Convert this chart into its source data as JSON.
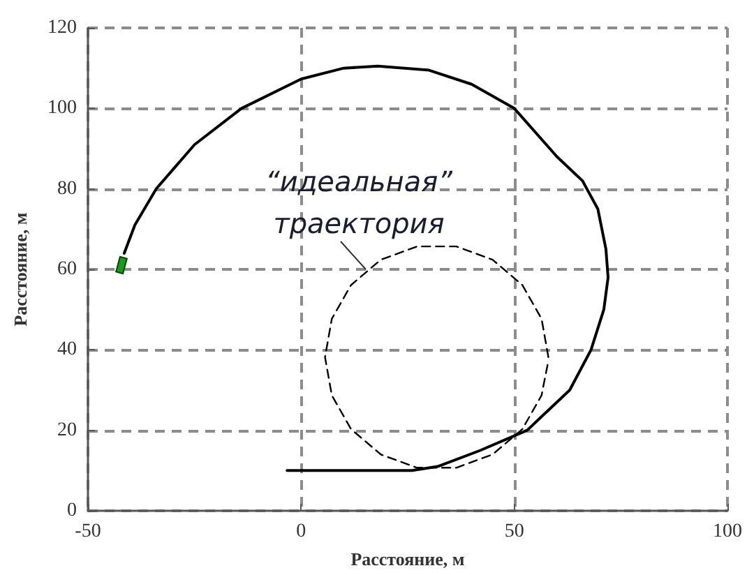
{
  "chart_data": {
    "type": "line",
    "xlabel": "Расстояние, м",
    "ylabel": "Расстояние, м",
    "xlim": [
      -50,
      100
    ],
    "xticks": [
      -50,
      0,
      50,
      100
    ],
    "ylim": [
      0,
      120
    ],
    "yticks": [
      0,
      20,
      40,
      60,
      80,
      100,
      120
    ],
    "grid": true,
    "marker": "none",
    "annotations": [
      "“идеальная”\nтраектория"
    ],
    "series": [
      {
        "color": "#000000",
        "line_style": "solid",
        "x": [
          -3.3,
          26,
          32,
          42,
          53,
          63,
          68,
          71,
          72,
          71.5,
          69.6,
          66,
          60,
          50,
          40,
          30,
          18,
          10,
          0,
          -14,
          -25,
          -34,
          -39,
          -41.5
        ],
        "values": [
          10,
          10,
          11,
          15,
          20,
          30,
          40,
          50,
          58,
          65,
          75,
          82,
          88,
          100,
          106,
          109.5,
          110.5,
          110,
          107.3,
          100,
          91,
          80,
          71,
          64
        ]
      },
      {
        "color": "#000000",
        "line_style": "dashed",
        "x": [
          58.0,
          56.4,
          51.9,
          44.9,
          36.4,
          27.2,
          18.7,
          11.7,
          7.2,
          5.6,
          7.2,
          11.7,
          18.7,
          27.2,
          36.4,
          44.9,
          51.9,
          56.4,
          57.9
        ],
        "values": [
          38.2,
          47.7,
          56.1,
          62.4,
          65.7,
          65.7,
          62.4,
          56.1,
          47.7,
          38.2,
          28.7,
          20.3,
          14.0,
          10.7,
          10.7,
          14.0,
          20.3,
          28.7,
          36.8
        ]
      }
    ]
  }
}
